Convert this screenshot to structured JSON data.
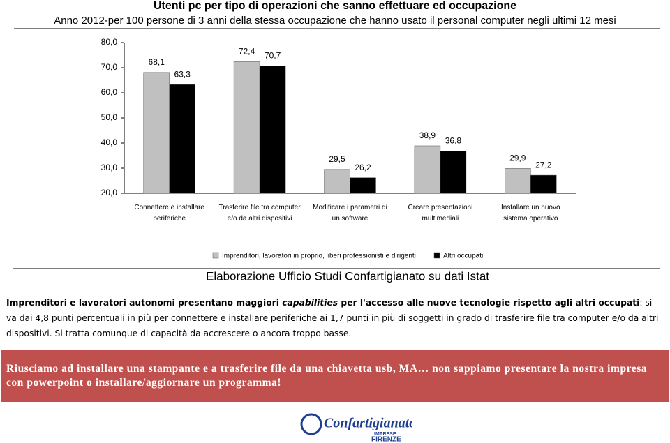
{
  "chart_data": {
    "type": "bar",
    "title": "Utenti pc per tipo di operazioni che sanno effettuare ed occupazione",
    "subtitle": "Anno 2012-per 100 persone di 3 anni della stessa occupazione che hanno usato il personal computer negli ultimi 12 mesi",
    "categories": [
      "Connettere e installare periferiche",
      "Trasferire file tra computer e/o da altri dispositivi",
      "Modificare i parametri di un software",
      "Creare presentazioni multimediali",
      "Installare un nuovo sistema operativo"
    ],
    "series": [
      {
        "name": "Imprenditori, lavoratori in proprio, liberi professionisti e dirigenti",
        "color": "#c0c0c0",
        "values": [
          68.1,
          72.4,
          29.5,
          38.9,
          29.9
        ],
        "value_labels": [
          "68,1",
          "72,4",
          "29,5",
          "38,9",
          "29,9"
        ]
      },
      {
        "name": "Altri occupati",
        "color": "#000000",
        "values": [
          63.3,
          70.7,
          26.2,
          36.8,
          27.2
        ],
        "value_labels": [
          "63,3",
          "70,7",
          "26,2",
          "36,8",
          "27,2"
        ]
      }
    ],
    "ylim": [
      20,
      80
    ],
    "yticks": [
      {
        "value": 20,
        "label": "20,0"
      },
      {
        "value": 30,
        "label": "30,0"
      },
      {
        "value": 40,
        "label": "40,0"
      },
      {
        "value": 50,
        "label": "50,0"
      },
      {
        "value": 60,
        "label": "60,0"
      },
      {
        "value": 70,
        "label": "70,0"
      },
      {
        "value": 80,
        "label": "80,0"
      }
    ],
    "grid": false,
    "source": "Elaborazione Ufficio Studi Confartigianato su dati Istat"
  },
  "paragraph": {
    "runs": [
      {
        "text": "Imprenditori e lavoratori autonomi presentano maggiori ",
        "bold": true,
        "italic": false
      },
      {
        "text": "capabilities",
        "bold": true,
        "italic": true
      },
      {
        "text": " per l'accesso alle nuove tecnologie rispetto agli altri occupati",
        "bold": true,
        "italic": false
      },
      {
        "text": ": si va dai 4,8 punti percentuali in più per connettere e installare periferiche ai 1,7 punti in più di soggetti in grado di trasferire file tra computer e/o da altri dispositivi. Si tratta comunque di capacità da accrescere o ancora troppo basse.",
        "bold": false,
        "italic": false
      }
    ]
  },
  "banner": {
    "text": "Riusciamo ad installare una stampante e a trasferire file da una chiavetta usb, MA… non sappiamo presentare la nostra impresa con powerpoint o installare/aggiornare un programma!"
  },
  "logo": {
    "name": "Confartigianato",
    "line1": "IMPRESE",
    "line2": "FIRENZE"
  }
}
